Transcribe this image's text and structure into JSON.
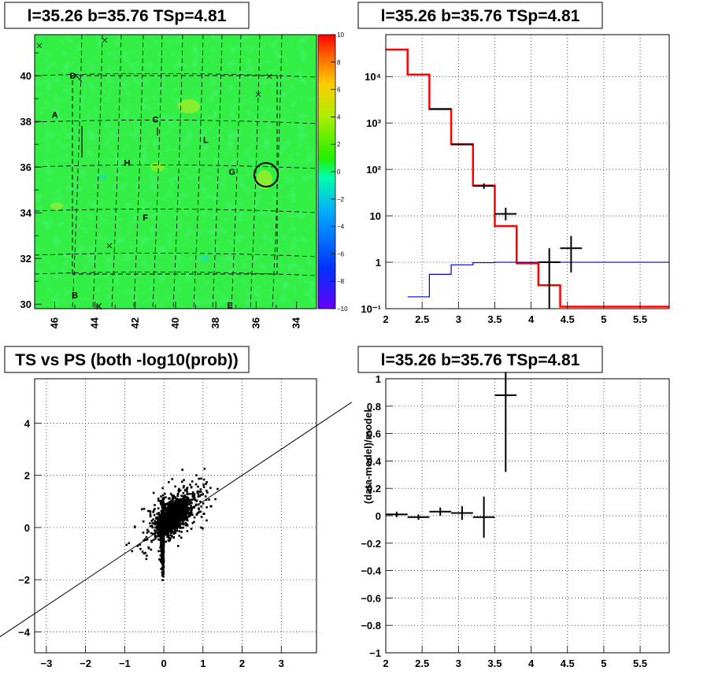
{
  "panels": {
    "map": {
      "title": "l=35.26 b=35.76 TSp=4.81"
    },
    "spectrum": {
      "title": "l=35.26 b=35.76 TSp=4.81"
    },
    "scatter": {
      "title": "TS vs PS (both -log10(prob))"
    },
    "residual": {
      "title": "l=35.26 b=35.76 TSp=4.81"
    }
  },
  "chart_data": [
    {
      "type": "heatmap",
      "title": "l=35.26 b=35.76 TSp=4.81",
      "x_ticks": [
        "46",
        "44",
        "42",
        "40",
        "38",
        "36",
        "34"
      ],
      "y_ticks": [
        "30",
        "32",
        "34",
        "36",
        "38",
        "40"
      ],
      "xlim": [
        47,
        33
      ],
      "ylim": [
        29.8,
        41.8
      ],
      "colorbar": {
        "min": -10,
        "max": 10,
        "ticks": [
          "10",
          "8",
          "6",
          "4",
          "2",
          "0",
          "−2",
          "−4",
          "−6",
          "−8",
          "−10"
        ]
      },
      "labels": [
        {
          "text": "D",
          "x": 45.1,
          "y": 40.0
        },
        {
          "text": "A",
          "x": 46.0,
          "y": 38.3
        },
        {
          "text": "C",
          "x": 41.0,
          "y": 38.1
        },
        {
          "text": "L",
          "x": 38.5,
          "y": 37.2
        },
        {
          "text": "H",
          "x": 42.4,
          "y": 36.2
        },
        {
          "text": "G",
          "x": 37.2,
          "y": 35.8
        },
        {
          "text": "F",
          "x": 41.5,
          "y": 33.8
        },
        {
          "text": "B",
          "x": 45.0,
          "y": 30.4
        },
        {
          "text": "K",
          "x": 43.8,
          "y": 29.9
        },
        {
          "text": "E",
          "x": 37.3,
          "y": 29.95
        }
      ],
      "source_marker": {
        "l": 35.26,
        "b": 35.76
      }
    },
    {
      "type": "line",
      "title": "l=35.26 b=35.76 TSp=4.81",
      "x_ticks": [
        "2",
        "2.5",
        "3",
        "3.5",
        "4",
        "4.5",
        "5",
        "5.5"
      ],
      "y_ticks": [
        "10⁻¹",
        "1",
        "10",
        "10²",
        "10³",
        "10⁴"
      ],
      "xlim": [
        2,
        5.9
      ],
      "ylim": [
        0.1,
        80000
      ],
      "y_scale": "log",
      "series": [
        {
          "color": "#ff0000",
          "edges": [
            2.0,
            2.3,
            2.6,
            2.9,
            3.2,
            3.5,
            3.8,
            4.1,
            4.4,
            5.9
          ],
          "values": [
            38000,
            11000,
            2000,
            350,
            45,
            6,
            0.95,
            0.32,
            0.11
          ]
        },
        {
          "color": "#0000cc",
          "edges": [
            2.3,
            2.6,
            2.9,
            3.2,
            3.5,
            5.9
          ],
          "values": [
            0.18,
            0.55,
            0.88,
            0.98,
            1.0
          ]
        },
        {
          "color": "#000000",
          "type": "error",
          "points": [
            {
              "x": 2.75,
              "y": 2000,
              "xerr": 0.15,
              "ylo": 1950,
              "yhi": 2050
            },
            {
              "x": 3.05,
              "y": 345,
              "xerr": 0.15,
              "ylo": 330,
              "yhi": 360
            },
            {
              "x": 3.35,
              "y": 44,
              "xerr": 0.15,
              "ylo": 38,
              "yhi": 50
            },
            {
              "x": 3.65,
              "y": 11,
              "xerr": 0.15,
              "ylo": 8,
              "yhi": 15
            },
            {
              "x": 4.25,
              "y": 1.0,
              "xerr": 0.15,
              "ylo": 0.1,
              "yhi": 2.0
            },
            {
              "x": 4.55,
              "y": 2.0,
              "xerr": 0.15,
              "ylo": 0.6,
              "yhi": 3.7
            }
          ]
        }
      ]
    },
    {
      "type": "scatter",
      "title": "TS vs PS (both -log10(prob))",
      "x_ticks": [
        "−3",
        "−2",
        "−1",
        "0",
        "1",
        "2",
        "3"
      ],
      "y_ticks": [
        "−4",
        "−2",
        "0",
        "2",
        "4"
      ],
      "xlim": [
        -3.3,
        3.9
      ],
      "ylim": [
        -4.8,
        5.7
      ],
      "trend_line": {
        "x1": -4.2,
        "y1": -4.2,
        "x2": 4.8,
        "y2": 4.8
      },
      "n_points": 2400
    },
    {
      "type": "scatter",
      "title": "l=35.26 b=35.76 TSp=4.81",
      "ylabel": "(data-model)/model",
      "x_ticks": [
        "2",
        "2.5",
        "3",
        "3.5",
        "4",
        "4.5",
        "5",
        "5.5"
      ],
      "y_ticks": [
        "−1",
        "−0.8",
        "−0.6",
        "−0.4",
        "−0.2",
        "0",
        "0.2",
        "0.4",
        "0.6",
        "0.8",
        "1"
      ],
      "xlim": [
        2,
        5.9
      ],
      "ylim": [
        -1,
        1
      ],
      "points": [
        {
          "x": 2.15,
          "y": 0.01,
          "xerr": 0.15,
          "yerr": 0.02
        },
        {
          "x": 2.45,
          "y": -0.01,
          "xerr": 0.15,
          "yerr": 0.02
        },
        {
          "x": 2.75,
          "y": 0.03,
          "xerr": 0.15,
          "yerr": 0.03
        },
        {
          "x": 3.05,
          "y": 0.02,
          "xerr": 0.15,
          "yerr": 0.05
        },
        {
          "x": 3.35,
          "y": -0.01,
          "xerr": 0.15,
          "yerr": 0.15
        },
        {
          "x": 3.65,
          "y": 0.88,
          "xerr": 0.15,
          "yerr": 0.56
        }
      ]
    }
  ]
}
